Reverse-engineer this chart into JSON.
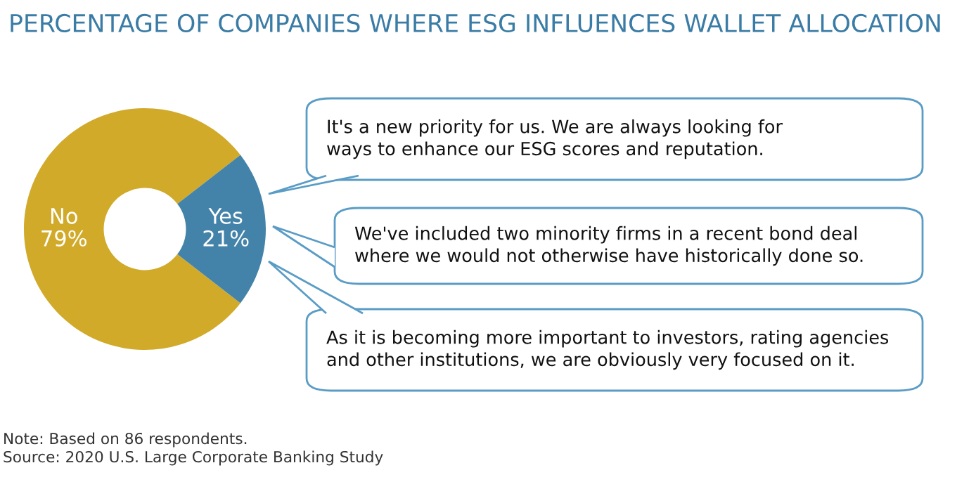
{
  "chart_data": {
    "type": "donut",
    "title": "PERCENTAGE OF COMPANIES WHERE ESG INFLUENCES WALLET ALLOCATION",
    "categories": [
      "No",
      "Yes"
    ],
    "values": [
      79,
      21
    ],
    "colors": [
      "#d1aa2a",
      "#4483a9"
    ],
    "value_labels": [
      "79%",
      "21%"
    ],
    "annotations": [
      "It's a new priority for us. We are always looking for\nways to enhance our ESG scores and reputation.",
      "We've included two minority firms in a recent bond deal\nwhere we would not otherwise have historically done so.",
      "As it is becoming more important to investors, rating agencies\nand other institutions, we are obviously very focused on it.",
      "Note: Based on 86 respondents.",
      "Source: 2020 U.S. Large Corporate Banking Study"
    ]
  }
}
